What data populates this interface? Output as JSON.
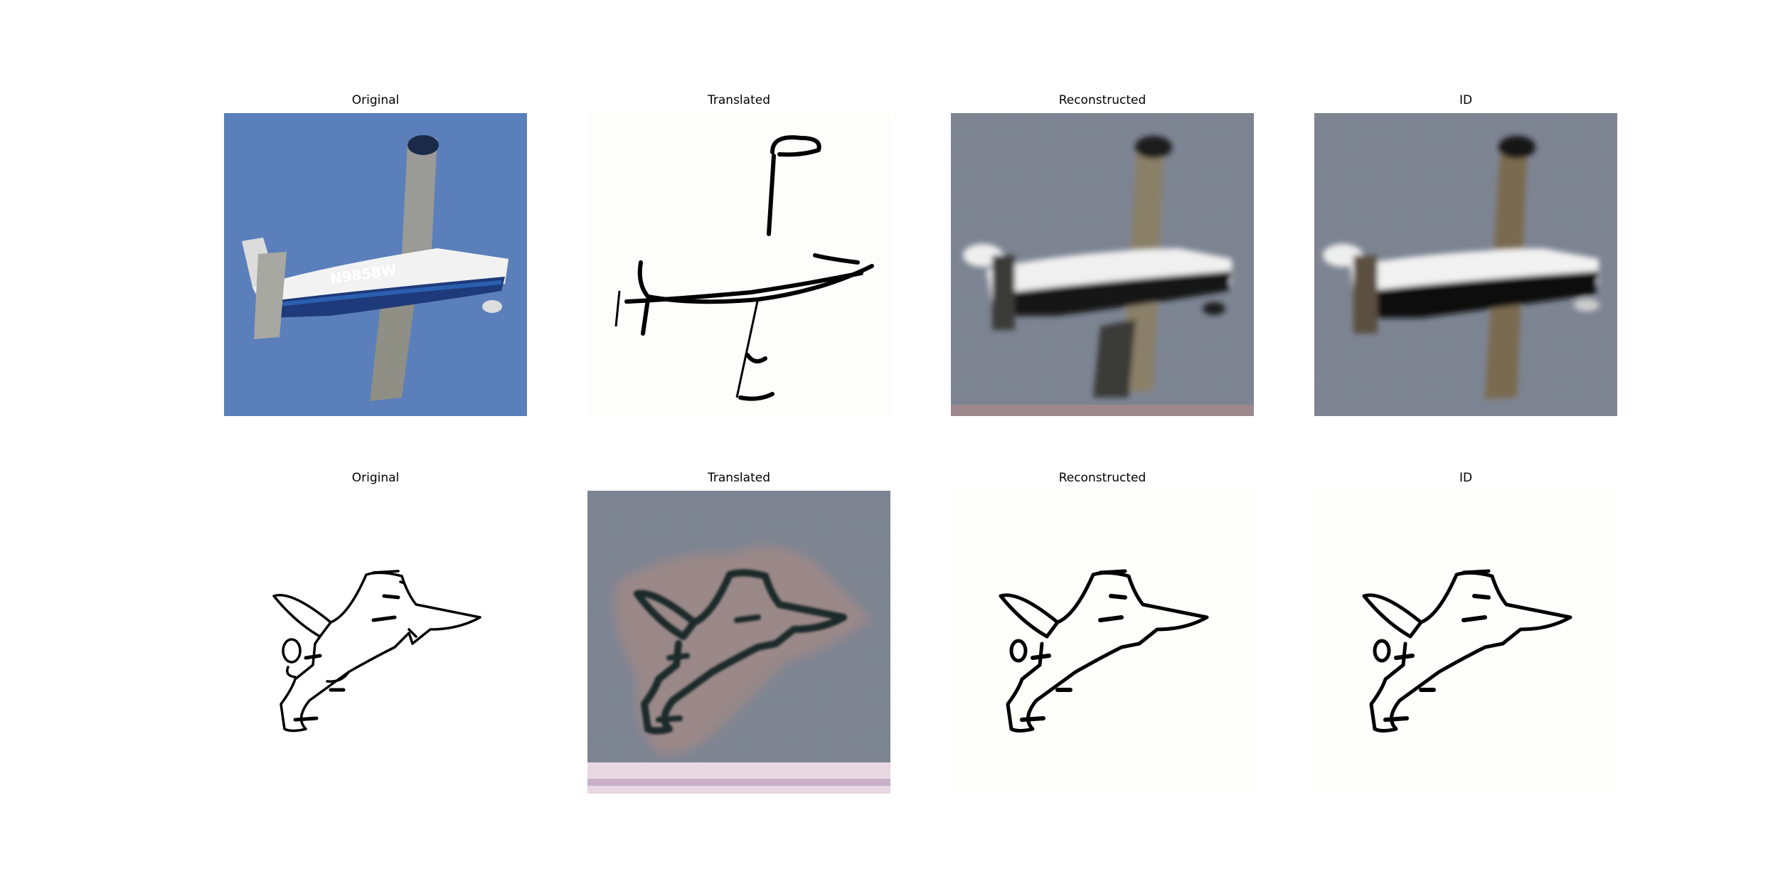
{
  "rows": [
    {
      "panels": [
        {
          "title": "Original",
          "registration_text": "N9858W"
        },
        {
          "title": "Translated"
        },
        {
          "title": "Reconstructed"
        },
        {
          "title": "ID"
        }
      ]
    },
    {
      "panels": [
        {
          "title": "Original"
        },
        {
          "title": "Translated"
        },
        {
          "title": "Reconstructed"
        },
        {
          "title": "ID"
        }
      ]
    }
  ],
  "colors": {
    "sky_blue": "#5a7fbb",
    "grey_bg": "#7d8493",
    "line": "#000000",
    "white": "#ffffff"
  }
}
